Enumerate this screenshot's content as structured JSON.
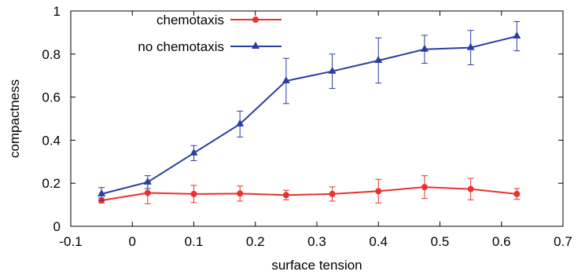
{
  "chart_data": {
    "type": "line",
    "xlabel": "surface tension",
    "ylabel": "compactness",
    "xlim": [
      -0.1,
      0.7
    ],
    "ylim": [
      0,
      1
    ],
    "x_ticks": [
      "-0.1",
      "0",
      "0.1",
      "0.2",
      "0.3",
      "0.4",
      "0.5",
      "0.6",
      "0.7"
    ],
    "y_ticks": [
      "0",
      "0.2",
      "0.4",
      "0.6",
      "0.8",
      "1"
    ],
    "legend_position": "top-left",
    "grid": false,
    "x": [
      -0.05,
      0.025,
      0.1,
      0.175,
      0.25,
      0.325,
      0.4,
      0.475,
      0.55,
      0.625
    ],
    "series": [
      {
        "name": "chemotaxis",
        "color": "#e8322e",
        "marker": "circle",
        "values": [
          0.12,
          0.155,
          0.15,
          0.152,
          0.145,
          0.15,
          0.163,
          0.182,
          0.173,
          0.15
        ],
        "errors": [
          0.012,
          0.05,
          0.04,
          0.035,
          0.022,
          0.033,
          0.055,
          0.053,
          0.05,
          0.025
        ]
      },
      {
        "name": "no chemotaxis",
        "color": "#2a3ea0",
        "marker": "triangle",
        "values": [
          0.15,
          0.205,
          0.34,
          0.475,
          0.675,
          0.72,
          0.77,
          0.822,
          0.83,
          0.883
        ],
        "errors": [
          0.03,
          0.03,
          0.035,
          0.06,
          0.105,
          0.08,
          0.105,
          0.065,
          0.08,
          0.068
        ]
      }
    ]
  }
}
